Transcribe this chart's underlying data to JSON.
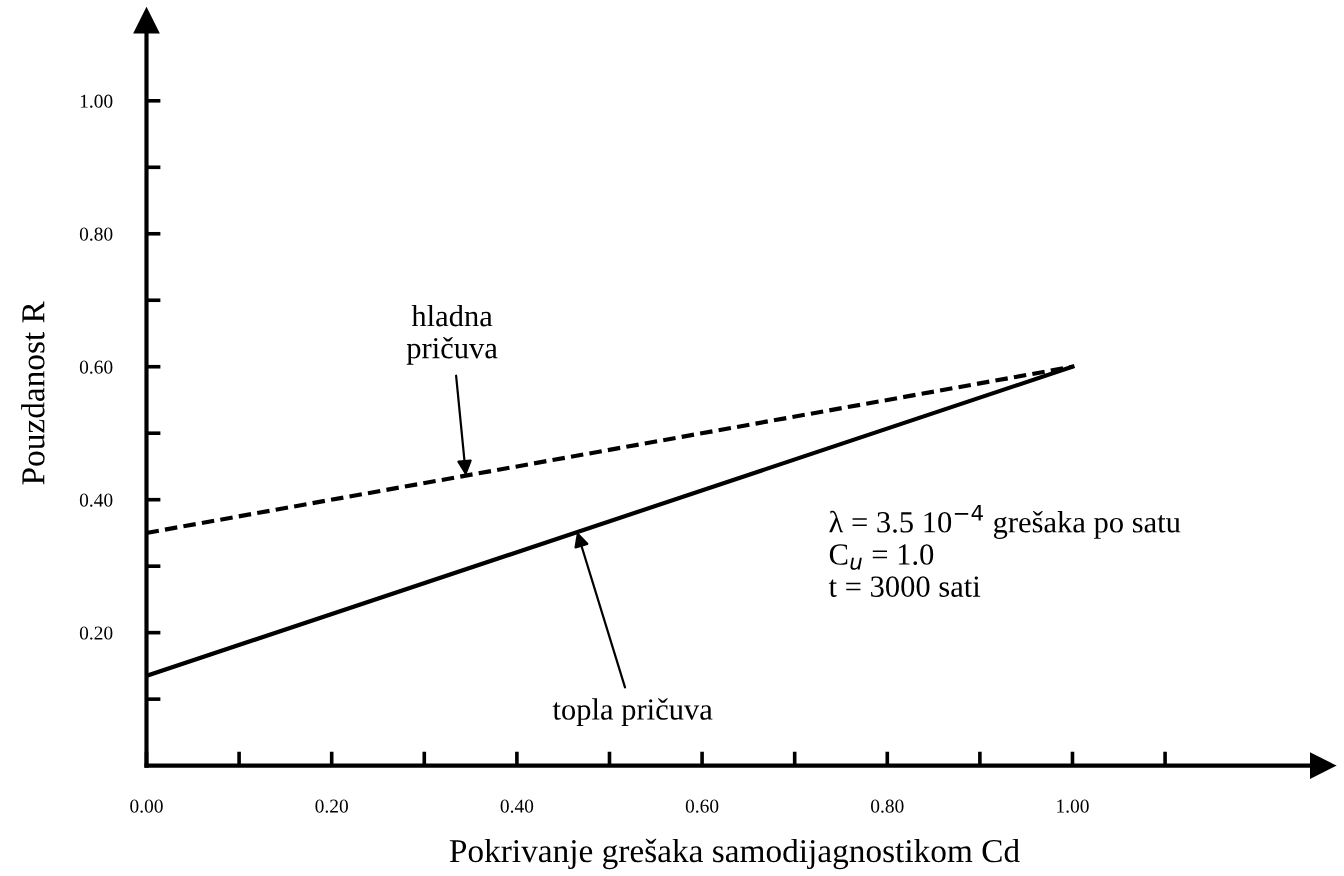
{
  "chart_data": {
    "type": "line",
    "xlabel": "Pokrivanje grešaka samodijagnostikom Cd",
    "ylabel": "Pouzdanost R",
    "x": [
      0,
      1.0
    ],
    "series": [
      {
        "color": "#000000",
        "values": [
          0.35,
          0.6
        ],
        "line_style": "dashed"
      },
      {
        "color": "#000000",
        "values": [
          0.135,
          0.6
        ],
        "line_style": "solid"
      }
    ],
    "xlim": [
      0,
      1.27
    ],
    "ylim": [
      0,
      1.12
    ],
    "xticks": [
      {
        "value": 0,
        "label": "0.00"
      },
      {
        "value": 0.1,
        "label": null
      },
      {
        "value": 0.2,
        "label": "0.20"
      },
      {
        "value": 0.3,
        "label": null
      },
      {
        "value": 0.4,
        "label": "0.40"
      },
      {
        "value": 0.5,
        "label": null
      },
      {
        "value": 0.6,
        "label": "0.60"
      },
      {
        "value": 0.7,
        "label": null
      },
      {
        "value": 0.8,
        "label": "0.80"
      },
      {
        "value": 0.9,
        "label": null
      },
      {
        "value": 1.0,
        "label": "1.00"
      },
      {
        "value": 1.1,
        "label": null
      }
    ],
    "yticks": [
      {
        "value": 0.1,
        "label": null
      },
      {
        "value": 0.2,
        "label": "0.20"
      },
      {
        "value": 0.3,
        "label": null
      },
      {
        "value": 0.4,
        "label": "0.40"
      },
      {
        "value": 0.5,
        "label": null
      },
      {
        "value": 0.6,
        "label": "0.60"
      },
      {
        "value": 0.7,
        "label": null
      },
      {
        "value": 0.8,
        "label": "0.80"
      },
      {
        "value": 0.9,
        "label": null
      },
      {
        "value": 1.0,
        "label": "1.00"
      }
    ],
    "grid": false,
    "legend": false,
    "marker": "none",
    "annotations": [
      {
        "text": "hladna\npričuva",
        "x": 0.345,
        "y": 0.436
      },
      {
        "text": "topla pričuva",
        "x": 0.465,
        "y": 0.352
      },
      "λ = 3.5 10$^{−4}$ grešaka po satu\nC$_{u}$ = 1.0\nt = 3000 sati"
    ]
  }
}
